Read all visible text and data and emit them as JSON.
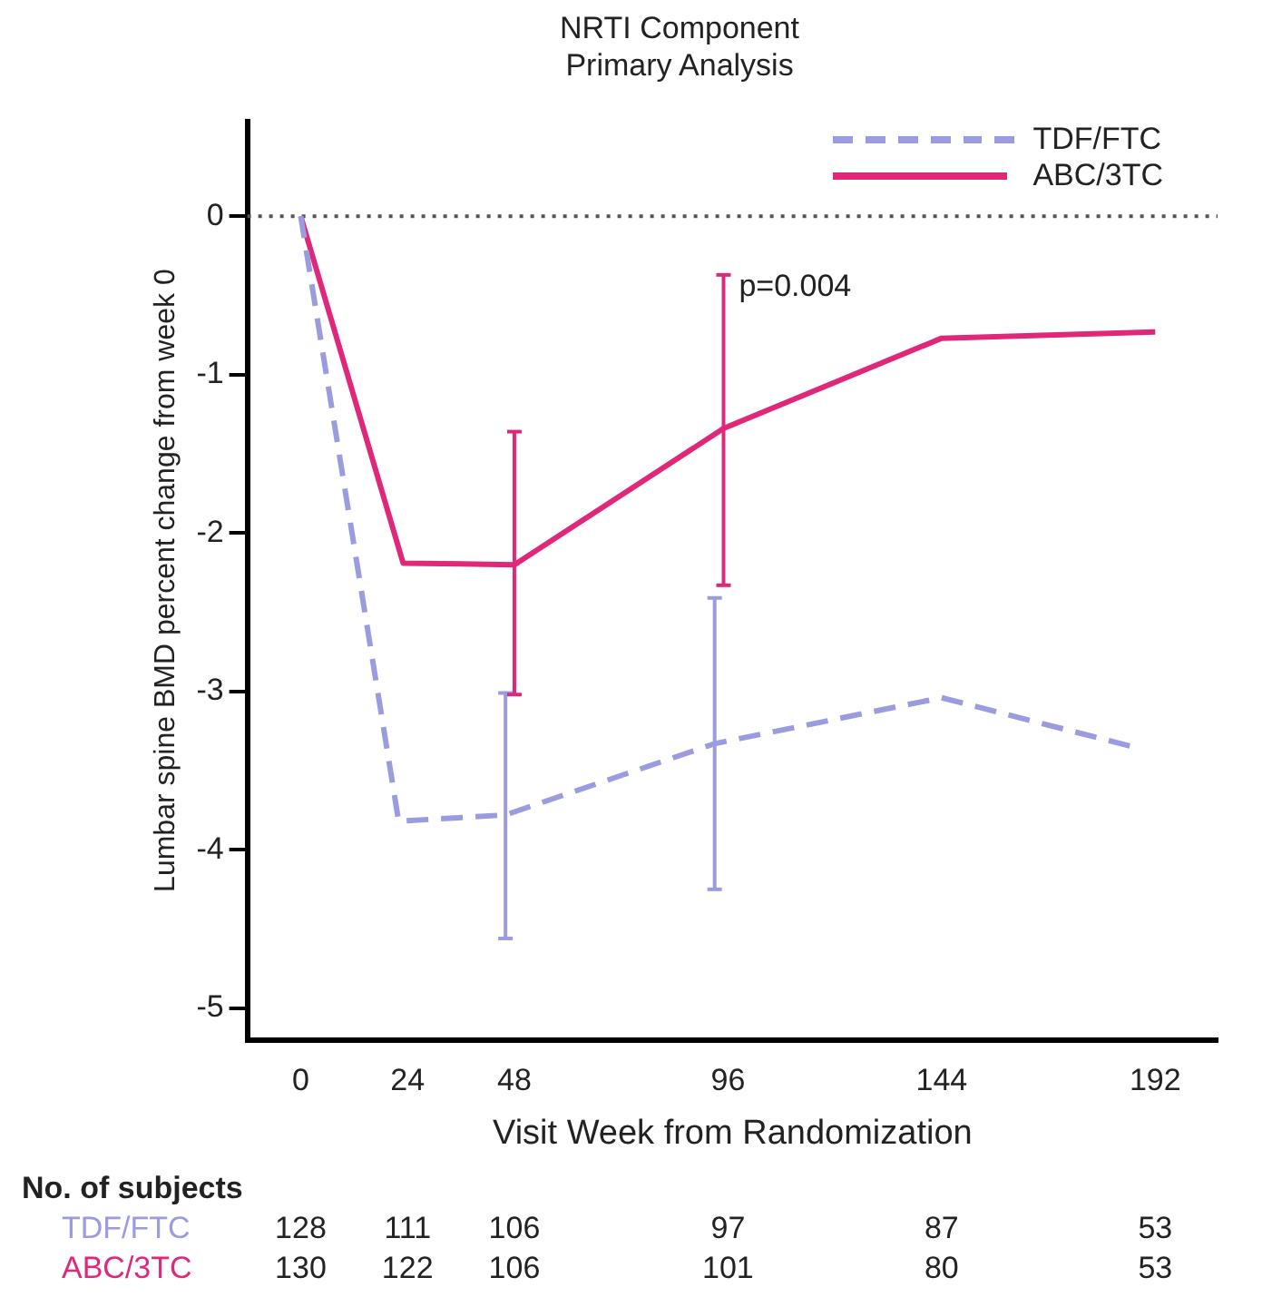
{
  "chart_data": {
    "type": "line",
    "title": "NRTI Component",
    "subtitle": "Primary Analysis",
    "xlabel": "Visit Week from Randomization",
    "ylabel": "Lumbar spine BMD percent change from week 0",
    "xlim": [
      -12,
      206
    ],
    "xticks": [
      0,
      24,
      48,
      96,
      144,
      192
    ],
    "ylim": [
      -5.2,
      0.6
    ],
    "yticks": [
      -5,
      -4,
      -3,
      -2,
      -1,
      0
    ],
    "grid": false,
    "legend": "top right",
    "series": [
      {
        "name": "TDF/FTC",
        "color": "#9b9be0",
        "line_style": "dashed",
        "x": [
          0,
          22,
          46,
          93,
          144,
          187
        ],
        "values": [
          0,
          -3.82,
          -3.78,
          -3.33,
          -3.04,
          -3.35
        ],
        "errors": [
          null,
          null,
          [
            -4.56,
            -3.01
          ],
          [
            -4.25,
            -2.41
          ],
          null,
          null
        ]
      },
      {
        "name": "ABC/3TC",
        "color": "#e0287a",
        "line_style": "solid",
        "x": [
          0,
          23,
          48,
          95,
          144,
          192
        ],
        "values": [
          0,
          -2.19,
          -2.2,
          -1.34,
          -0.77,
          -0.73
        ],
        "errors": [
          null,
          null,
          [
            -3.02,
            -1.36
          ],
          [
            -2.33,
            -0.37
          ],
          null,
          null
        ]
      }
    ],
    "ref_lines": [
      {
        "axis": "y",
        "value": 0,
        "color": "#555555",
        "line_style": "dotted"
      }
    ],
    "annotations": [
      {
        "text": "p=0.004",
        "x": 96,
        "y": -0.45
      },
      "No. of subjects",
      "TDF/FTC 128 111 106 97 87 53",
      "ABC/3TC 130 122 106 101 80 53"
    ]
  }
}
